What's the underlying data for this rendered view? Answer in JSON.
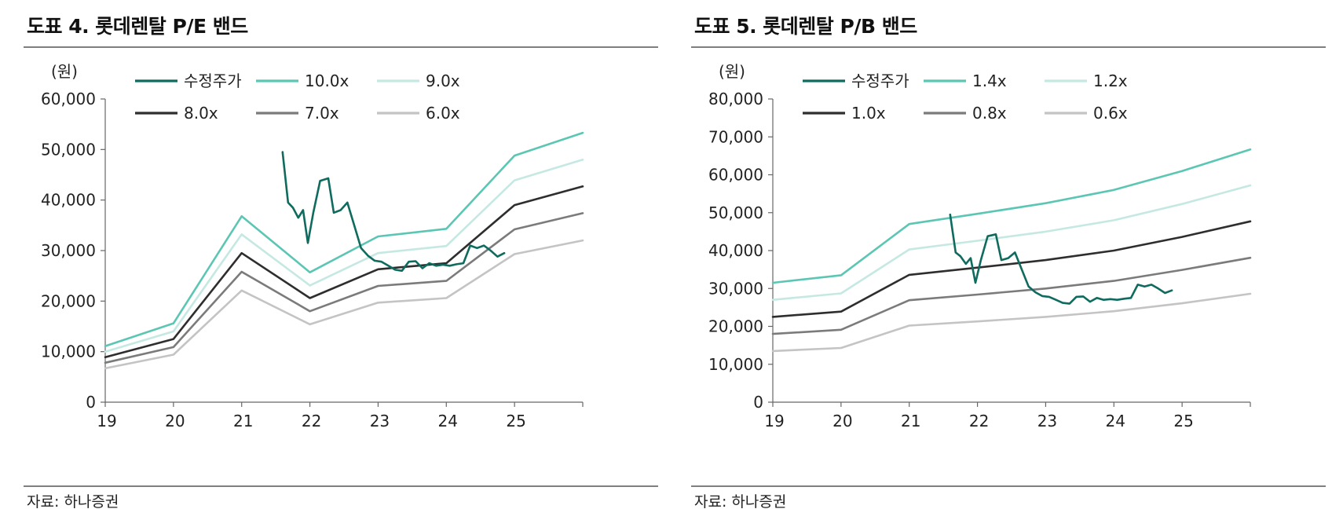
{
  "panels": [
    {
      "title": "도표 4. 롯데렌탈 P/E 밴드",
      "source": "자료: 하나증권"
    },
    {
      "title": "도표 5. 롯데렌탈 P/B 밴드",
      "source": "자료: 하나증권"
    }
  ],
  "chart_data": [
    {
      "type": "line",
      "title": "도표 4. 롯데렌탈 P/E 밴드",
      "ylabel": "(원)",
      "xlabel": "",
      "ylim": [
        0,
        60000
      ],
      "xlim": [
        19,
        26
      ],
      "yticks": [
        0,
        10000,
        20000,
        30000,
        40000,
        50000,
        60000
      ],
      "ytick_labels": [
        "0",
        "10,000",
        "20,000",
        "30,000",
        "40,000",
        "50,000",
        "60,000"
      ],
      "xticks": [
        19,
        20,
        21,
        22,
        23,
        24,
        25
      ],
      "xtick_labels": [
        "19",
        "20",
        "21",
        "22",
        "23",
        "24",
        "25"
      ],
      "grid": false,
      "legend_position": "top",
      "series": [
        {
          "name": "수정주가",
          "color": "#0e6b5e",
          "width": 2.6,
          "x": [
            21.6,
            21.68,
            21.75,
            21.83,
            21.9,
            21.97,
            22.05,
            22.15,
            22.27,
            22.35,
            22.45,
            22.55,
            22.65,
            22.75,
            22.85,
            22.95,
            23.05,
            23.15,
            23.25,
            23.35,
            23.45,
            23.55,
            23.65,
            23.75,
            23.85,
            23.95,
            24.05,
            24.15,
            24.25,
            24.35,
            24.45,
            24.55,
            24.65,
            24.75,
            24.85
          ],
          "y": [
            49500,
            39500,
            38500,
            36500,
            38000,
            31500,
            37500,
            43800,
            44300,
            37500,
            38000,
            39500,
            35000,
            30500,
            29000,
            28000,
            27800,
            27000,
            26200,
            26000,
            27800,
            27900,
            26500,
            27500,
            27000,
            27200,
            27000,
            27300,
            27500,
            31000,
            30500,
            31000,
            30000,
            28800,
            29500
          ]
        },
        {
          "name": "10.0x",
          "color": "#5cc6b4",
          "width": 2.6,
          "x": [
            19,
            20,
            21,
            22,
            23,
            24,
            25,
            26
          ],
          "y": [
            11100,
            15600,
            36800,
            25700,
            32800,
            34300,
            48800,
            53300
          ]
        },
        {
          "name": "9.0x",
          "color": "#c5e9e2",
          "width": 2.6,
          "x": [
            19,
            20,
            21,
            22,
            23,
            24,
            25,
            26
          ],
          "y": [
            10000,
            14000,
            33200,
            23100,
            29500,
            30900,
            43900,
            48000
          ]
        },
        {
          "name": "8.0x",
          "color": "#2e2e2e",
          "width": 2.6,
          "x": [
            19,
            20,
            21,
            22,
            23,
            24,
            25,
            26
          ],
          "y": [
            8900,
            12500,
            29500,
            20600,
            26300,
            27500,
            39000,
            42700
          ]
        },
        {
          "name": "7.0x",
          "color": "#7b7b7b",
          "width": 2.6,
          "x": [
            19,
            20,
            21,
            22,
            23,
            24,
            25,
            26
          ],
          "y": [
            7800,
            10900,
            25800,
            18000,
            23000,
            24000,
            34200,
            37400
          ]
        },
        {
          "name": "6.0x",
          "color": "#c4c4c4",
          "width": 2.6,
          "x": [
            19,
            20,
            21,
            22,
            23,
            24,
            25,
            26
          ],
          "y": [
            6700,
            9400,
            22100,
            15400,
            19700,
            20600,
            29300,
            32000
          ]
        }
      ]
    },
    {
      "type": "line",
      "title": "도표 5. 롯데렌탈 P/B 밴드",
      "ylabel": "(원)",
      "xlabel": "",
      "ylim": [
        0,
        80000
      ],
      "xlim": [
        19,
        26
      ],
      "yticks": [
        0,
        10000,
        20000,
        30000,
        40000,
        50000,
        60000,
        70000,
        80000
      ],
      "ytick_labels": [
        "0",
        "10,000",
        "20,000",
        "30,000",
        "40,000",
        "50,000",
        "60,000",
        "70,000",
        "80,000"
      ],
      "xticks": [
        19,
        20,
        21,
        22,
        23,
        24,
        25
      ],
      "xtick_labels": [
        "19",
        "20",
        "21",
        "22",
        "23",
        "24",
        "25"
      ],
      "grid": false,
      "legend_position": "top",
      "series": [
        {
          "name": "수정주가",
          "color": "#0e6b5e",
          "width": 2.6,
          "x": [
            21.6,
            21.68,
            21.75,
            21.83,
            21.9,
            21.97,
            22.05,
            22.15,
            22.27,
            22.35,
            22.45,
            22.55,
            22.65,
            22.75,
            22.85,
            22.95,
            23.05,
            23.15,
            23.25,
            23.35,
            23.45,
            23.55,
            23.65,
            23.75,
            23.85,
            23.95,
            24.05,
            24.15,
            24.25,
            24.35,
            24.45,
            24.55,
            24.65,
            24.75,
            24.85
          ],
          "y": [
            49500,
            39500,
            38500,
            36500,
            38000,
            31500,
            37500,
            43800,
            44300,
            37500,
            38000,
            39500,
            35000,
            30500,
            29000,
            28000,
            27800,
            27000,
            26200,
            26000,
            27800,
            27900,
            26500,
            27500,
            27000,
            27200,
            27000,
            27300,
            27500,
            31000,
            30500,
            31000,
            30000,
            28800,
            29500
          ]
        },
        {
          "name": "1.4x",
          "color": "#5cc6b4",
          "width": 2.6,
          "x": [
            19,
            20,
            21,
            22,
            23,
            24,
            25,
            26
          ],
          "y": [
            31500,
            33500,
            47000,
            49700,
            52500,
            56000,
            61000,
            66700
          ]
        },
        {
          "name": "1.2x",
          "color": "#c5e9e2",
          "width": 2.6,
          "x": [
            19,
            20,
            21,
            22,
            23,
            24,
            25,
            26
          ],
          "y": [
            27000,
            28700,
            40300,
            42600,
            45000,
            48000,
            52300,
            57200
          ]
        },
        {
          "name": "1.0x",
          "color": "#2e2e2e",
          "width": 2.6,
          "x": [
            19,
            20,
            21,
            22,
            23,
            24,
            25,
            26
          ],
          "y": [
            22500,
            23900,
            33600,
            35500,
            37500,
            40000,
            43600,
            47700
          ]
        },
        {
          "name": "0.8x",
          "color": "#7b7b7b",
          "width": 2.6,
          "x": [
            19,
            20,
            21,
            22,
            23,
            24,
            25,
            26
          ],
          "y": [
            18000,
            19100,
            26900,
            28400,
            30000,
            32000,
            34900,
            38100
          ]
        },
        {
          "name": "0.6x",
          "color": "#c4c4c4",
          "width": 2.6,
          "x": [
            19,
            20,
            21,
            22,
            23,
            24,
            25,
            26
          ],
          "y": [
            13500,
            14300,
            20200,
            21300,
            22500,
            24000,
            26100,
            28600
          ]
        }
      ]
    }
  ]
}
